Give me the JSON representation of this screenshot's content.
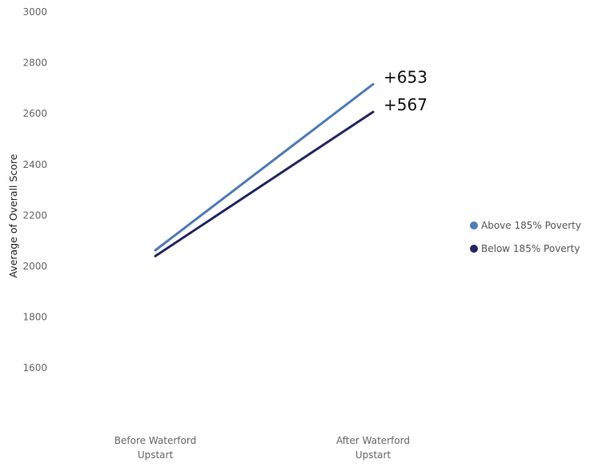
{
  "chart_data": {
    "type": "line",
    "title": "",
    "xlabel": "",
    "ylabel": "Average of Overall Score",
    "ylim": [
      1500,
      3000
    ],
    "yticks": [
      1600,
      1800,
      2000,
      2200,
      2400,
      2600,
      2800,
      3000
    ],
    "categories": [
      [
        "Before Waterford",
        "Upstart"
      ],
      [
        "After Waterford",
        "Upstart"
      ]
    ],
    "series": [
      {
        "name": "Above 185% Poverty",
        "color": "#4f7bb5",
        "values": [
          2063,
          2716
        ],
        "annotation": "+653"
      },
      {
        "name": "Below 185% Poverty",
        "color": "#232660",
        "values": [
          2040,
          2607
        ],
        "annotation": "+567"
      }
    ],
    "grid": false,
    "legend_position": "right"
  }
}
